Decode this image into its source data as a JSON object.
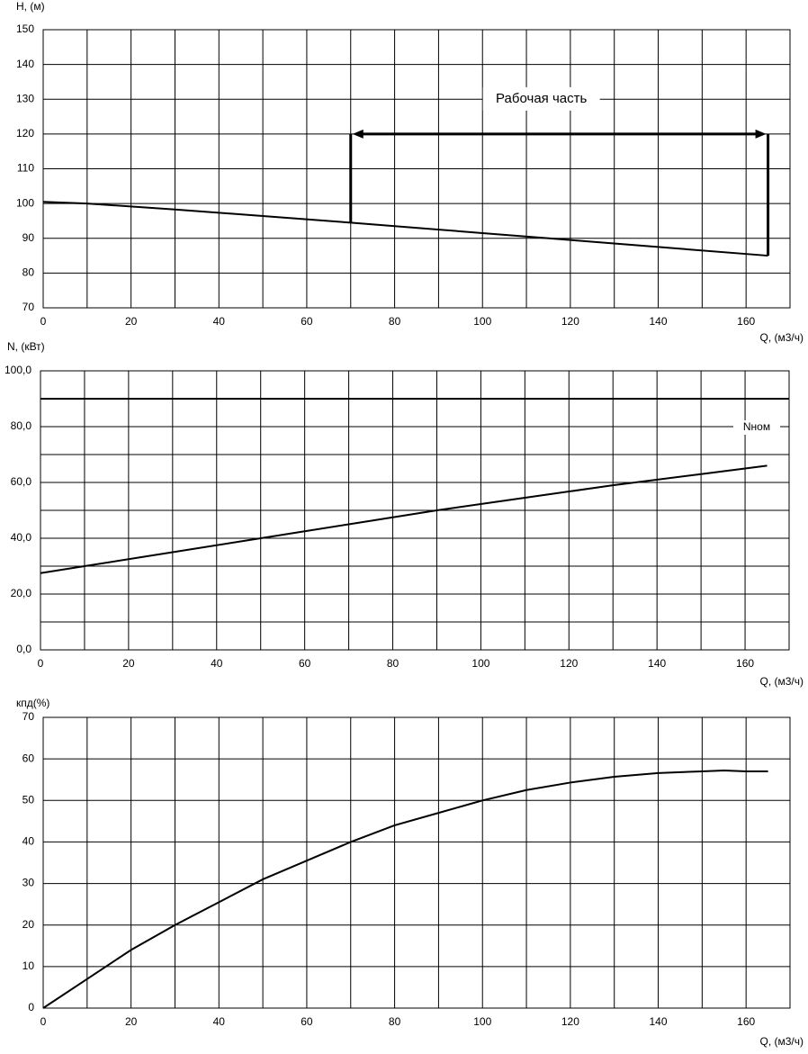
{
  "chart_data": [
    {
      "type": "line",
      "y_label": "H, (м)",
      "x_label": "Q, (м3/ч)",
      "xlim": [
        0,
        170
      ],
      "xticks": [
        0,
        20,
        40,
        60,
        80,
        100,
        120,
        140,
        160
      ],
      "minor_xticks": [
        10,
        30,
        50,
        70,
        90,
        110,
        130,
        150,
        170
      ],
      "ylim": [
        70,
        150
      ],
      "yticks": [
        70,
        80,
        90,
        100,
        110,
        120,
        130,
        140,
        150
      ],
      "grid": true,
      "series": [
        {
          "color": "#000000",
          "x": [
            0,
            10,
            30,
            50,
            70,
            100,
            120,
            140,
            165
          ],
          "values": [
            100.5,
            100,
            98.3,
            96.4,
            94.5,
            91.5,
            89.5,
            87.5,
            85
          ]
        }
      ],
      "range": {
        "label": "Рабочая часть",
        "x": [
          70,
          165
        ],
        "y": 120
      }
    },
    {
      "type": "line",
      "y_label": "N, (кВт)",
      "x_label": "Q, (м3/ч)",
      "xlim": [
        0,
        170
      ],
      "xticks": [
        0,
        20,
        40,
        60,
        80,
        100,
        120,
        140,
        160
      ],
      "minor_xticks": [
        10,
        30,
        50,
        70,
        90,
        110,
        130,
        150,
        170
      ],
      "ylim": [
        0,
        100
      ],
      "yticks": [
        {
          "value": 0,
          "label": "0,0"
        },
        {
          "value": 20,
          "label": "20,0"
        },
        {
          "value": 40,
          "label": "40,0"
        },
        {
          "value": 60,
          "label": "60,0"
        },
        {
          "value": 80,
          "label": "80,0"
        },
        {
          "value": 100,
          "label": "100,0"
        }
      ],
      "minor_yticks": [
        10,
        30,
        50,
        70,
        90
      ],
      "grid": true,
      "series": [
        {
          "color": "#000000",
          "x": [
            0,
            10,
            30,
            50,
            70,
            90,
            110,
            130,
            150,
            165
          ],
          "values": [
            27.5,
            30,
            35,
            40,
            45,
            50,
            54.5,
            59,
            63,
            66
          ]
        }
      ],
      "hline": {
        "label": "Nном",
        "value": 90
      }
    },
    {
      "type": "line",
      "y_label": "кпд(%)",
      "x_label": "Q, (м3/ч)",
      "xlim": [
        0,
        170
      ],
      "xticks": [
        0,
        20,
        40,
        60,
        80,
        100,
        120,
        140,
        160
      ],
      "minor_xticks": [
        10,
        30,
        50,
        70,
        90,
        110,
        130,
        150,
        170
      ],
      "ylim": [
        0,
        70
      ],
      "yticks": [
        0,
        10,
        20,
        30,
        40,
        50,
        60,
        70
      ],
      "grid": true,
      "series": [
        {
          "color": "#000000",
          "x": [
            0,
            10,
            20,
            30,
            40,
            50,
            60,
            70,
            80,
            90,
            100,
            110,
            120,
            130,
            140,
            150,
            155,
            160,
            165
          ],
          "values": [
            0,
            7,
            14,
            20,
            25.5,
            31,
            35.5,
            40,
            44,
            47,
            50,
            52.5,
            54.3,
            55.7,
            56.6,
            57,
            57.2,
            57,
            57
          ]
        }
      ]
    }
  ]
}
